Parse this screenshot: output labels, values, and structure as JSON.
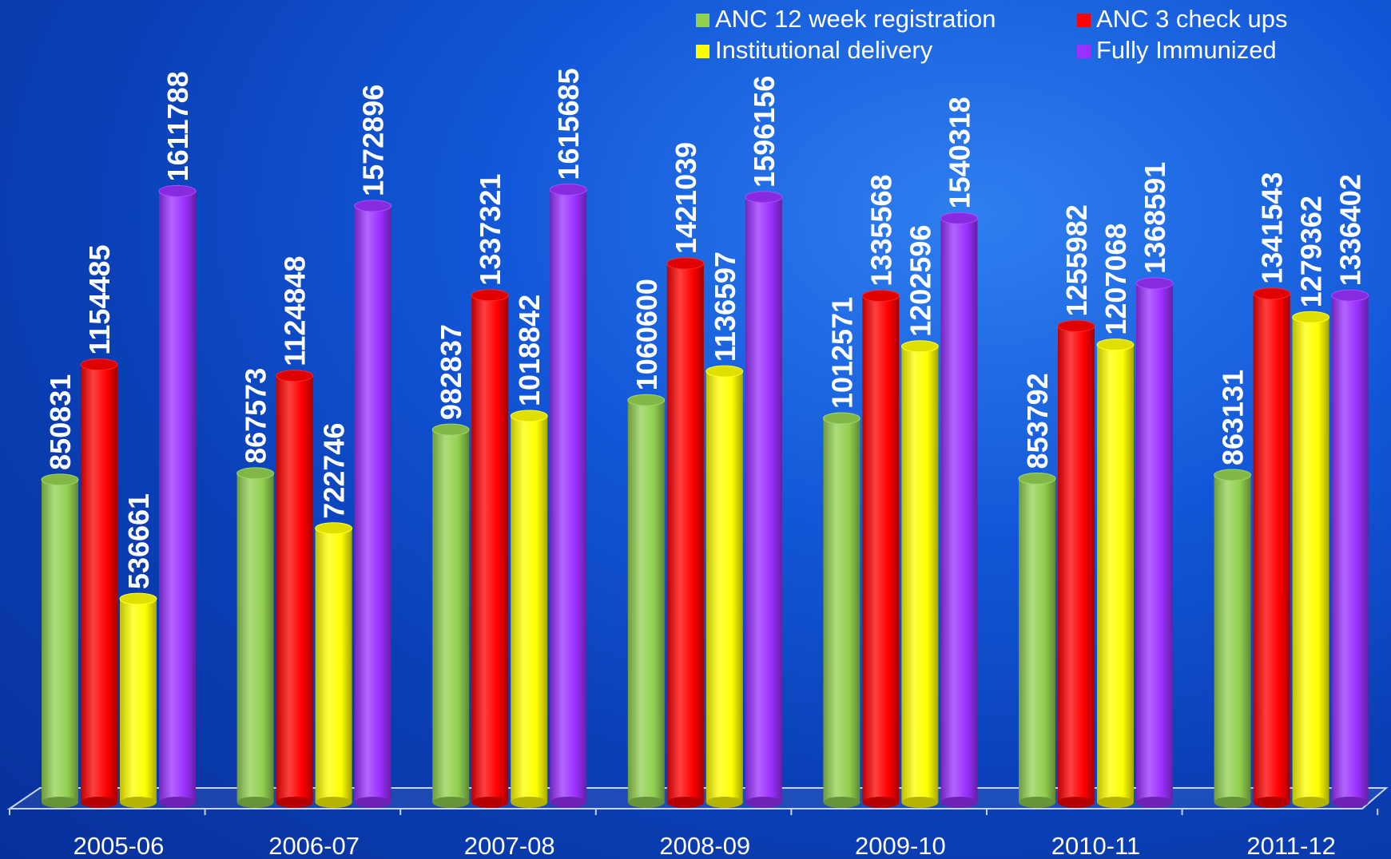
{
  "chart_data": {
    "type": "bar",
    "title": "",
    "xlabel": "",
    "ylabel": "",
    "ylim": [
      0,
      1800000
    ],
    "grid": false,
    "legend_position": "top-right",
    "categories": [
      "2005-06",
      "2006-07",
      "2007-08",
      "2008-09",
      "2009-10",
      "2010-11",
      "2011-12"
    ],
    "series": [
      {
        "name": "ANC 12 week registration",
        "color": "#92d050",
        "values": [
          850831,
          867573,
          982837,
          1060600,
          1012571,
          853792,
          863131
        ]
      },
      {
        "name": "ANC 3 check ups",
        "color": "#ff0000",
        "values": [
          1154485,
          1124848,
          1337321,
          1421039,
          1335568,
          1255982,
          1341543
        ]
      },
      {
        "name": "Institutional delivery",
        "color": "#ffff00",
        "values": [
          536661,
          722746,
          1018842,
          1136597,
          1202596,
          1207068,
          1279362
        ]
      },
      {
        "name": "Fully Immunized",
        "color": "#9b30ff",
        "values": [
          1611788,
          1572896,
          1615685,
          1596156,
          1540318,
          1368591,
          1336402
        ]
      }
    ]
  }
}
